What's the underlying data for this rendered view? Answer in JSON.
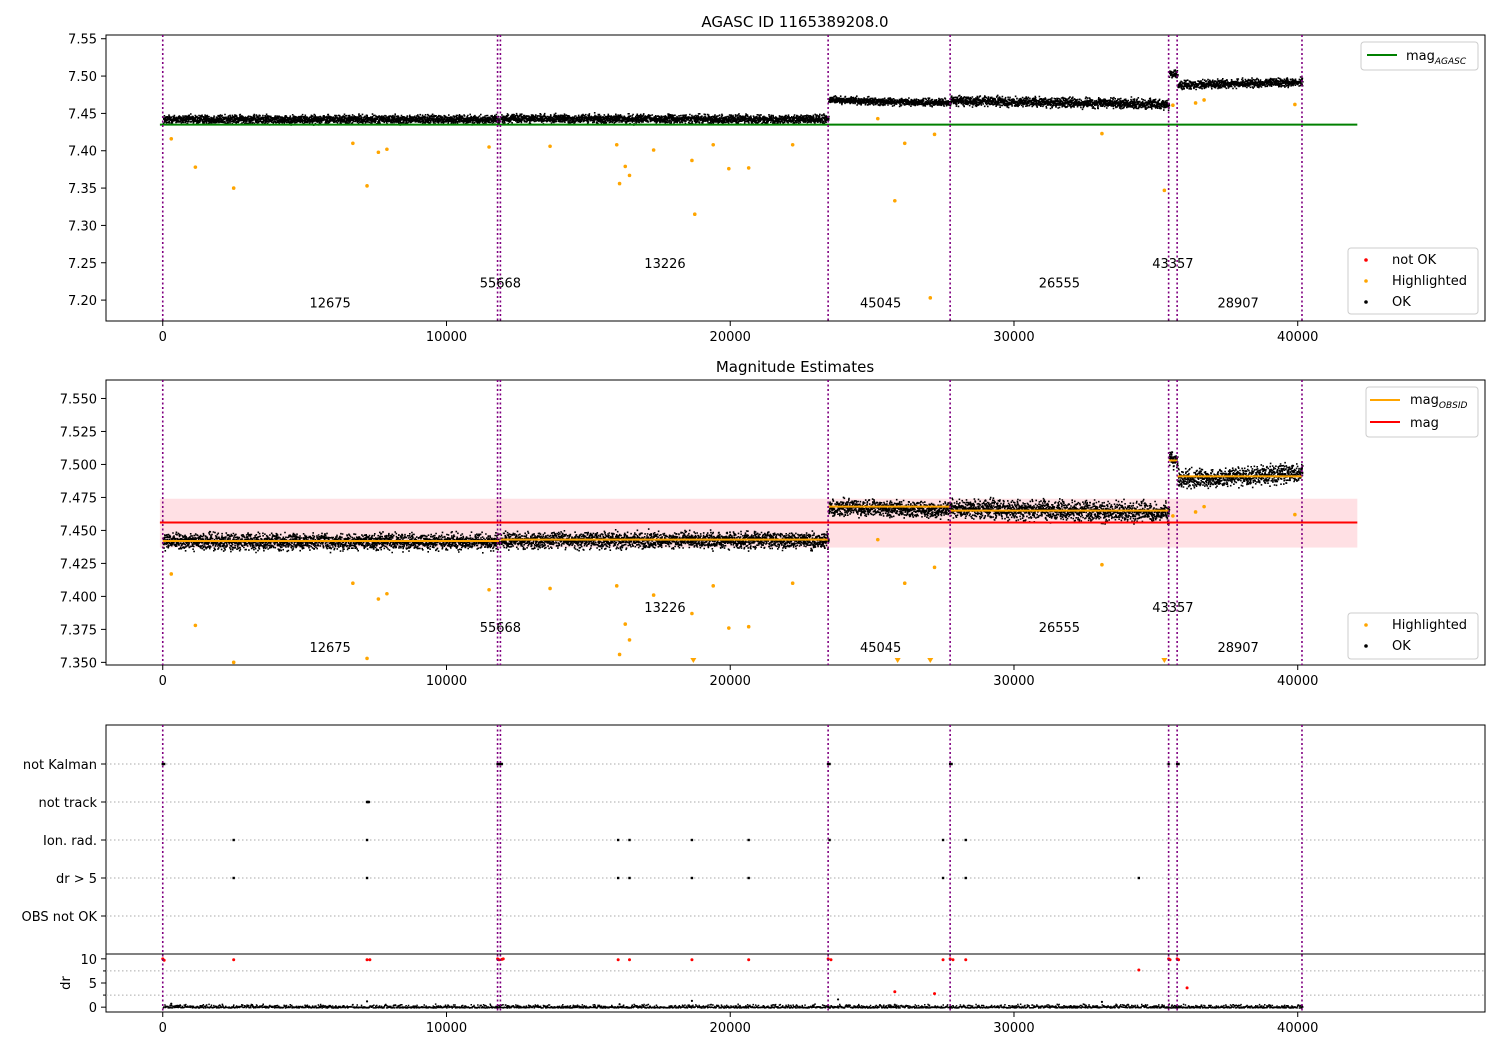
{
  "chart_data": [
    {
      "type": "scatter",
      "title": "AGASC ID 1165389208.0",
      "xlim": [
        -2000,
        46600
      ],
      "ylim": [
        7.172,
        7.555
      ],
      "x_ticks": [
        0,
        10000,
        20000,
        30000,
        40000
      ],
      "y_ticks": [
        7.2,
        7.25,
        7.3,
        7.35,
        7.4,
        7.45,
        7.5,
        7.55
      ],
      "y_tick_labels": [
        "7.20",
        "7.25",
        "7.30",
        "7.35",
        "7.40",
        "7.45",
        "7.50",
        "7.55"
      ],
      "obs_boundaries": [
        0,
        11800,
        11900,
        23450,
        27750,
        35450,
        35750,
        40150
      ],
      "obs_labels": [
        {
          "text": "12675",
          "x": 5900,
          "y": 7.19
        },
        {
          "text": "55668",
          "x": 11900,
          "y": 7.217
        },
        {
          "text": "13226",
          "x": 17700,
          "y": 7.243
        },
        {
          "text": "45045",
          "x": 25300,
          "y": 7.19
        },
        {
          "text": "26555",
          "x": 31600,
          "y": 7.217
        },
        {
          "text": "43357",
          "x": 35600,
          "y": 7.243
        },
        {
          "text": "28907",
          "x": 37900,
          "y": 7.19
        }
      ],
      "reference_line": {
        "name": "mag_AGASC",
        "y": 7.435,
        "x": [
          -100,
          42100
        ],
        "color": "#008000"
      },
      "ok_segments": [
        {
          "x": [
            0,
            11850
          ],
          "y": [
            7.443,
            7.443
          ],
          "spread": 0.0085
        },
        {
          "x": [
            11900,
            23450
          ],
          "y": [
            7.444,
            7.443
          ],
          "spread": 0.0085
        },
        {
          "x": [
            23450,
            27750
          ],
          "y": [
            7.469,
            7.465
          ],
          "spread": 0.007
        },
        {
          "x": [
            27750,
            35450
          ],
          "y": [
            7.468,
            7.463
          ],
          "spread": 0.0095
        },
        {
          "x": [
            35450,
            35750
          ],
          "y": [
            7.505,
            7.503
          ],
          "spread": 0.008
        },
        {
          "x": [
            35750,
            40150
          ],
          "y": [
            7.489,
            7.493
          ],
          "spread": 0.008
        }
      ],
      "highlighted_points": [
        [
          300,
          7.416
        ],
        [
          1150,
          7.378
        ],
        [
          2500,
          7.35
        ],
        [
          7200,
          7.353
        ],
        [
          7600,
          7.398
        ],
        [
          7900,
          7.402
        ],
        [
          6700,
          7.41
        ],
        [
          11500,
          7.405
        ],
        [
          13650,
          7.406
        ],
        [
          16000,
          7.408
        ],
        [
          16100,
          7.356
        ],
        [
          16300,
          7.379
        ],
        [
          16450,
          7.367
        ],
        [
          17300,
          7.401
        ],
        [
          18650,
          7.387
        ],
        [
          18750,
          7.315
        ],
        [
          19400,
          7.408
        ],
        [
          19950,
          7.376
        ],
        [
          20650,
          7.377
        ],
        [
          22200,
          7.408
        ],
        [
          25200,
          7.443
        ],
        [
          25800,
          7.333
        ],
        [
          26150,
          7.41
        ],
        [
          27050,
          7.203
        ],
        [
          27200,
          7.422
        ],
        [
          33100,
          7.423
        ],
        [
          35300,
          7.347
        ],
        [
          35600,
          7.461
        ],
        [
          36400,
          7.464
        ],
        [
          36700,
          7.468
        ],
        [
          39900,
          7.462
        ]
      ],
      "legend_main": [
        {
          "label": "mag",
          "sub": "AGASC",
          "color": "#008000"
        }
      ],
      "legend_points": [
        {
          "label": "not OK",
          "color": "#ff0000"
        },
        {
          "label": "Highlighted",
          "color": "#ffa500"
        },
        {
          "label": "OK",
          "color": "#000000"
        }
      ]
    },
    {
      "type": "scatter",
      "title": "Magnitude Estimates",
      "xlim": [
        -2000,
        46600
      ],
      "ylim": [
        7.348,
        7.564
      ],
      "x_ticks": [
        0,
        10000,
        20000,
        30000,
        40000
      ],
      "y_ticks": [
        7.35,
        7.375,
        7.4,
        7.425,
        7.45,
        7.475,
        7.5,
        7.525,
        7.55
      ],
      "y_tick_labels": [
        "7.350",
        "7.375",
        "7.400",
        "7.425",
        "7.450",
        "7.475",
        "7.500",
        "7.525",
        "7.550"
      ],
      "obs_boundaries": [
        0,
        11800,
        11900,
        23450,
        27750,
        35450,
        35750,
        40150
      ],
      "obs_labels": [
        {
          "text": "12675",
          "x": 5900,
          "y": 7.358
        },
        {
          "text": "55668",
          "x": 11900,
          "y": 7.373
        },
        {
          "text": "13226",
          "x": 17700,
          "y": 7.388
        },
        {
          "text": "45045",
          "x": 25300,
          "y": 7.358
        },
        {
          "text": "26555",
          "x": 31600,
          "y": 7.373
        },
        {
          "text": "43357",
          "x": 35600,
          "y": 7.388
        },
        {
          "text": "28907",
          "x": 37900,
          "y": 7.358
        }
      ],
      "reference_line": {
        "name": "mag",
        "y": 7.456,
        "x": [
          -100,
          42100
        ],
        "color": "#ff0000"
      },
      "reference_band": {
        "y": [
          7.437,
          7.474
        ],
        "color": "#ffe0e4"
      },
      "obsid_mean_segments": [
        {
          "x": [
            0,
            11850
          ],
          "y": 7.442
        },
        {
          "x": [
            11900,
            23450
          ],
          "y": 7.443
        },
        {
          "x": [
            23450,
            27750
          ],
          "y": 7.468
        },
        {
          "x": [
            27750,
            35450
          ],
          "y": 7.465
        },
        {
          "x": [
            35450,
            35750
          ],
          "y": 7.503
        },
        {
          "x": [
            35750,
            40150
          ],
          "y": 7.491
        }
      ],
      "ok_segments": [
        {
          "x": [
            0,
            11850
          ],
          "y": [
            7.442,
            7.442
          ],
          "spread": 0.009
        },
        {
          "x": [
            11900,
            23450
          ],
          "y": [
            7.443,
            7.443
          ],
          "spread": 0.009
        },
        {
          "x": [
            23450,
            27750
          ],
          "y": [
            7.468,
            7.466
          ],
          "spread": 0.0085
        },
        {
          "x": [
            27750,
            35450
          ],
          "y": [
            7.467,
            7.464
          ],
          "spread": 0.011
        },
        {
          "x": [
            35450,
            35750
          ],
          "y": [
            7.505,
            7.503
          ],
          "spread": 0.009
        },
        {
          "x": [
            35750,
            40150
          ],
          "y": [
            7.489,
            7.494
          ],
          "spread": 0.01
        }
      ],
      "highlighted_points": [
        [
          300,
          7.417
        ],
        [
          1150,
          7.378
        ],
        [
          2500,
          7.35
        ],
        [
          7200,
          7.353
        ],
        [
          7600,
          7.398
        ],
        [
          7900,
          7.402
        ],
        [
          6700,
          7.41
        ],
        [
          11500,
          7.405
        ],
        [
          13650,
          7.406
        ],
        [
          16000,
          7.408
        ],
        [
          16100,
          7.356
        ],
        [
          16300,
          7.379
        ],
        [
          16450,
          7.367
        ],
        [
          17300,
          7.401
        ],
        [
          18650,
          7.387
        ],
        [
          19400,
          7.408
        ],
        [
          19950,
          7.376
        ],
        [
          20650,
          7.377
        ],
        [
          22200,
          7.41
        ],
        [
          25200,
          7.443
        ],
        [
          26150,
          7.41
        ],
        [
          27200,
          7.422
        ],
        [
          33100,
          7.424
        ],
        [
          35600,
          7.461
        ],
        [
          36400,
          7.464
        ],
        [
          36700,
          7.468
        ],
        [
          39900,
          7.462
        ]
      ],
      "clipped_markers": [
        18700,
        25900,
        27050,
        35300
      ],
      "legend_main": [
        {
          "label": "mag",
          "sub": "OBSID",
          "color": "#ffa500"
        },
        {
          "label": "mag",
          "sub": "",
          "color": "#ff0000"
        }
      ],
      "legend_points": [
        {
          "label": "Highlighted",
          "color": "#ffa500"
        },
        {
          "label": "OK",
          "color": "#000000"
        }
      ]
    },
    {
      "type": "scatter",
      "title": "",
      "xlim": [
        -2000,
        46600
      ],
      "x_ticks": [
        0,
        10000,
        20000,
        30000,
        40000
      ],
      "obs_boundaries": [
        0,
        11800,
        11900,
        23450,
        27750,
        35450,
        35750,
        40150
      ],
      "flag_rows": [
        "not Kalman",
        "not track",
        "Ion. rad.",
        "dr > 5",
        "OBS not OK"
      ],
      "flag_points": [
        {
          "row": 0,
          "x": [
            0,
            50,
            11800,
            11850,
            11900,
            11950,
            23450,
            23500,
            27750,
            27800,
            35450,
            35750,
            35800
          ]
        },
        {
          "row": 1,
          "x": [
            7200,
            7230,
            7260
          ]
        },
        {
          "row": 2,
          "x": [
            2500,
            7200,
            16050,
            16450,
            18650,
            20650,
            23500,
            27500,
            28300
          ]
        },
        {
          "row": 3,
          "x": [
            2500,
            7200,
            16050,
            16450,
            18650,
            20650,
            27500,
            28300,
            34400
          ]
        }
      ],
      "dr_ylabel": "dr",
      "dr_ylim": [
        -1,
        11
      ],
      "dr_y_ticks": [
        0,
        5,
        10
      ],
      "dr_y_tick_labels": [
        "0",
        "5",
        "10"
      ],
      "dr_red_points": [
        [
          0,
          10
        ],
        [
          50,
          9.7
        ],
        [
          2500,
          9.8
        ],
        [
          7200,
          9.8
        ],
        [
          7300,
          9.8
        ],
        [
          11800,
          10
        ],
        [
          11850,
          9.8
        ],
        [
          11950,
          9.9
        ],
        [
          12000,
          10
        ],
        [
          16050,
          9.8
        ],
        [
          16450,
          9.8
        ],
        [
          18650,
          9.8
        ],
        [
          20650,
          9.8
        ],
        [
          23450,
          10
        ],
        [
          23550,
          9.8
        ],
        [
          25800,
          3.2
        ],
        [
          27200,
          2.8
        ],
        [
          27500,
          9.8
        ],
        [
          27750,
          10
        ],
        [
          27850,
          9.8
        ],
        [
          28300,
          9.8
        ],
        [
          34400,
          7.7
        ],
        [
          35450,
          10
        ],
        [
          35500,
          9.8
        ],
        [
          35750,
          10
        ],
        [
          35800,
          9.8
        ],
        [
          36100,
          4
        ]
      ],
      "dr_black_extra": [
        [
          300,
          0.7
        ],
        [
          7200,
          1.2
        ],
        [
          16100,
          0.6
        ],
        [
          18650,
          1.3
        ],
        [
          23800,
          1.6
        ],
        [
          25800,
          0.5
        ],
        [
          33100,
          1.1
        ]
      ]
    }
  ]
}
